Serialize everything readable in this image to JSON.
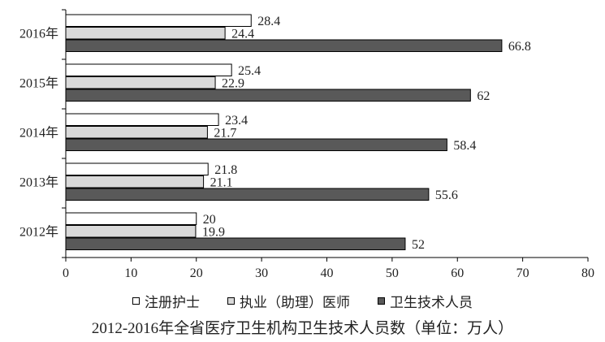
{
  "chart_data": {
    "type": "bar",
    "orientation": "horizontal",
    "title": "2012-2016年全省医疗卫生机构卫生技术人员数（单位：万人）",
    "categories": [
      "2016年",
      "2015年",
      "2014年",
      "2013年",
      "2012年"
    ],
    "series": [
      {
        "name": "注册护士",
        "values": [
          28.4,
          25.4,
          23.4,
          21.8,
          20
        ],
        "color": "#ffffff"
      },
      {
        "name": "执业（助理）医师",
        "values": [
          24.4,
          22.9,
          21.7,
          21.1,
          19.9
        ],
        "color": "#d9d9d9"
      },
      {
        "name": "卫生技术人员",
        "values": [
          66.8,
          62,
          58.4,
          55.6,
          52
        ],
        "color": "#595959"
      }
    ],
    "value_labels": [
      [
        "28.4",
        "25.4",
        "23.4",
        "21.8",
        "20"
      ],
      [
        "24.4",
        "22.9",
        "21.7",
        "21.1",
        "19.9"
      ],
      [
        "66.8",
        "62",
        "58.4",
        "55.6",
        "52"
      ]
    ],
    "xlim": [
      0,
      80
    ],
    "xticks": [
      "0",
      "10",
      "20",
      "30",
      "40",
      "50",
      "60",
      "70",
      "80"
    ],
    "grid": false,
    "legend_position": "bottom"
  }
}
